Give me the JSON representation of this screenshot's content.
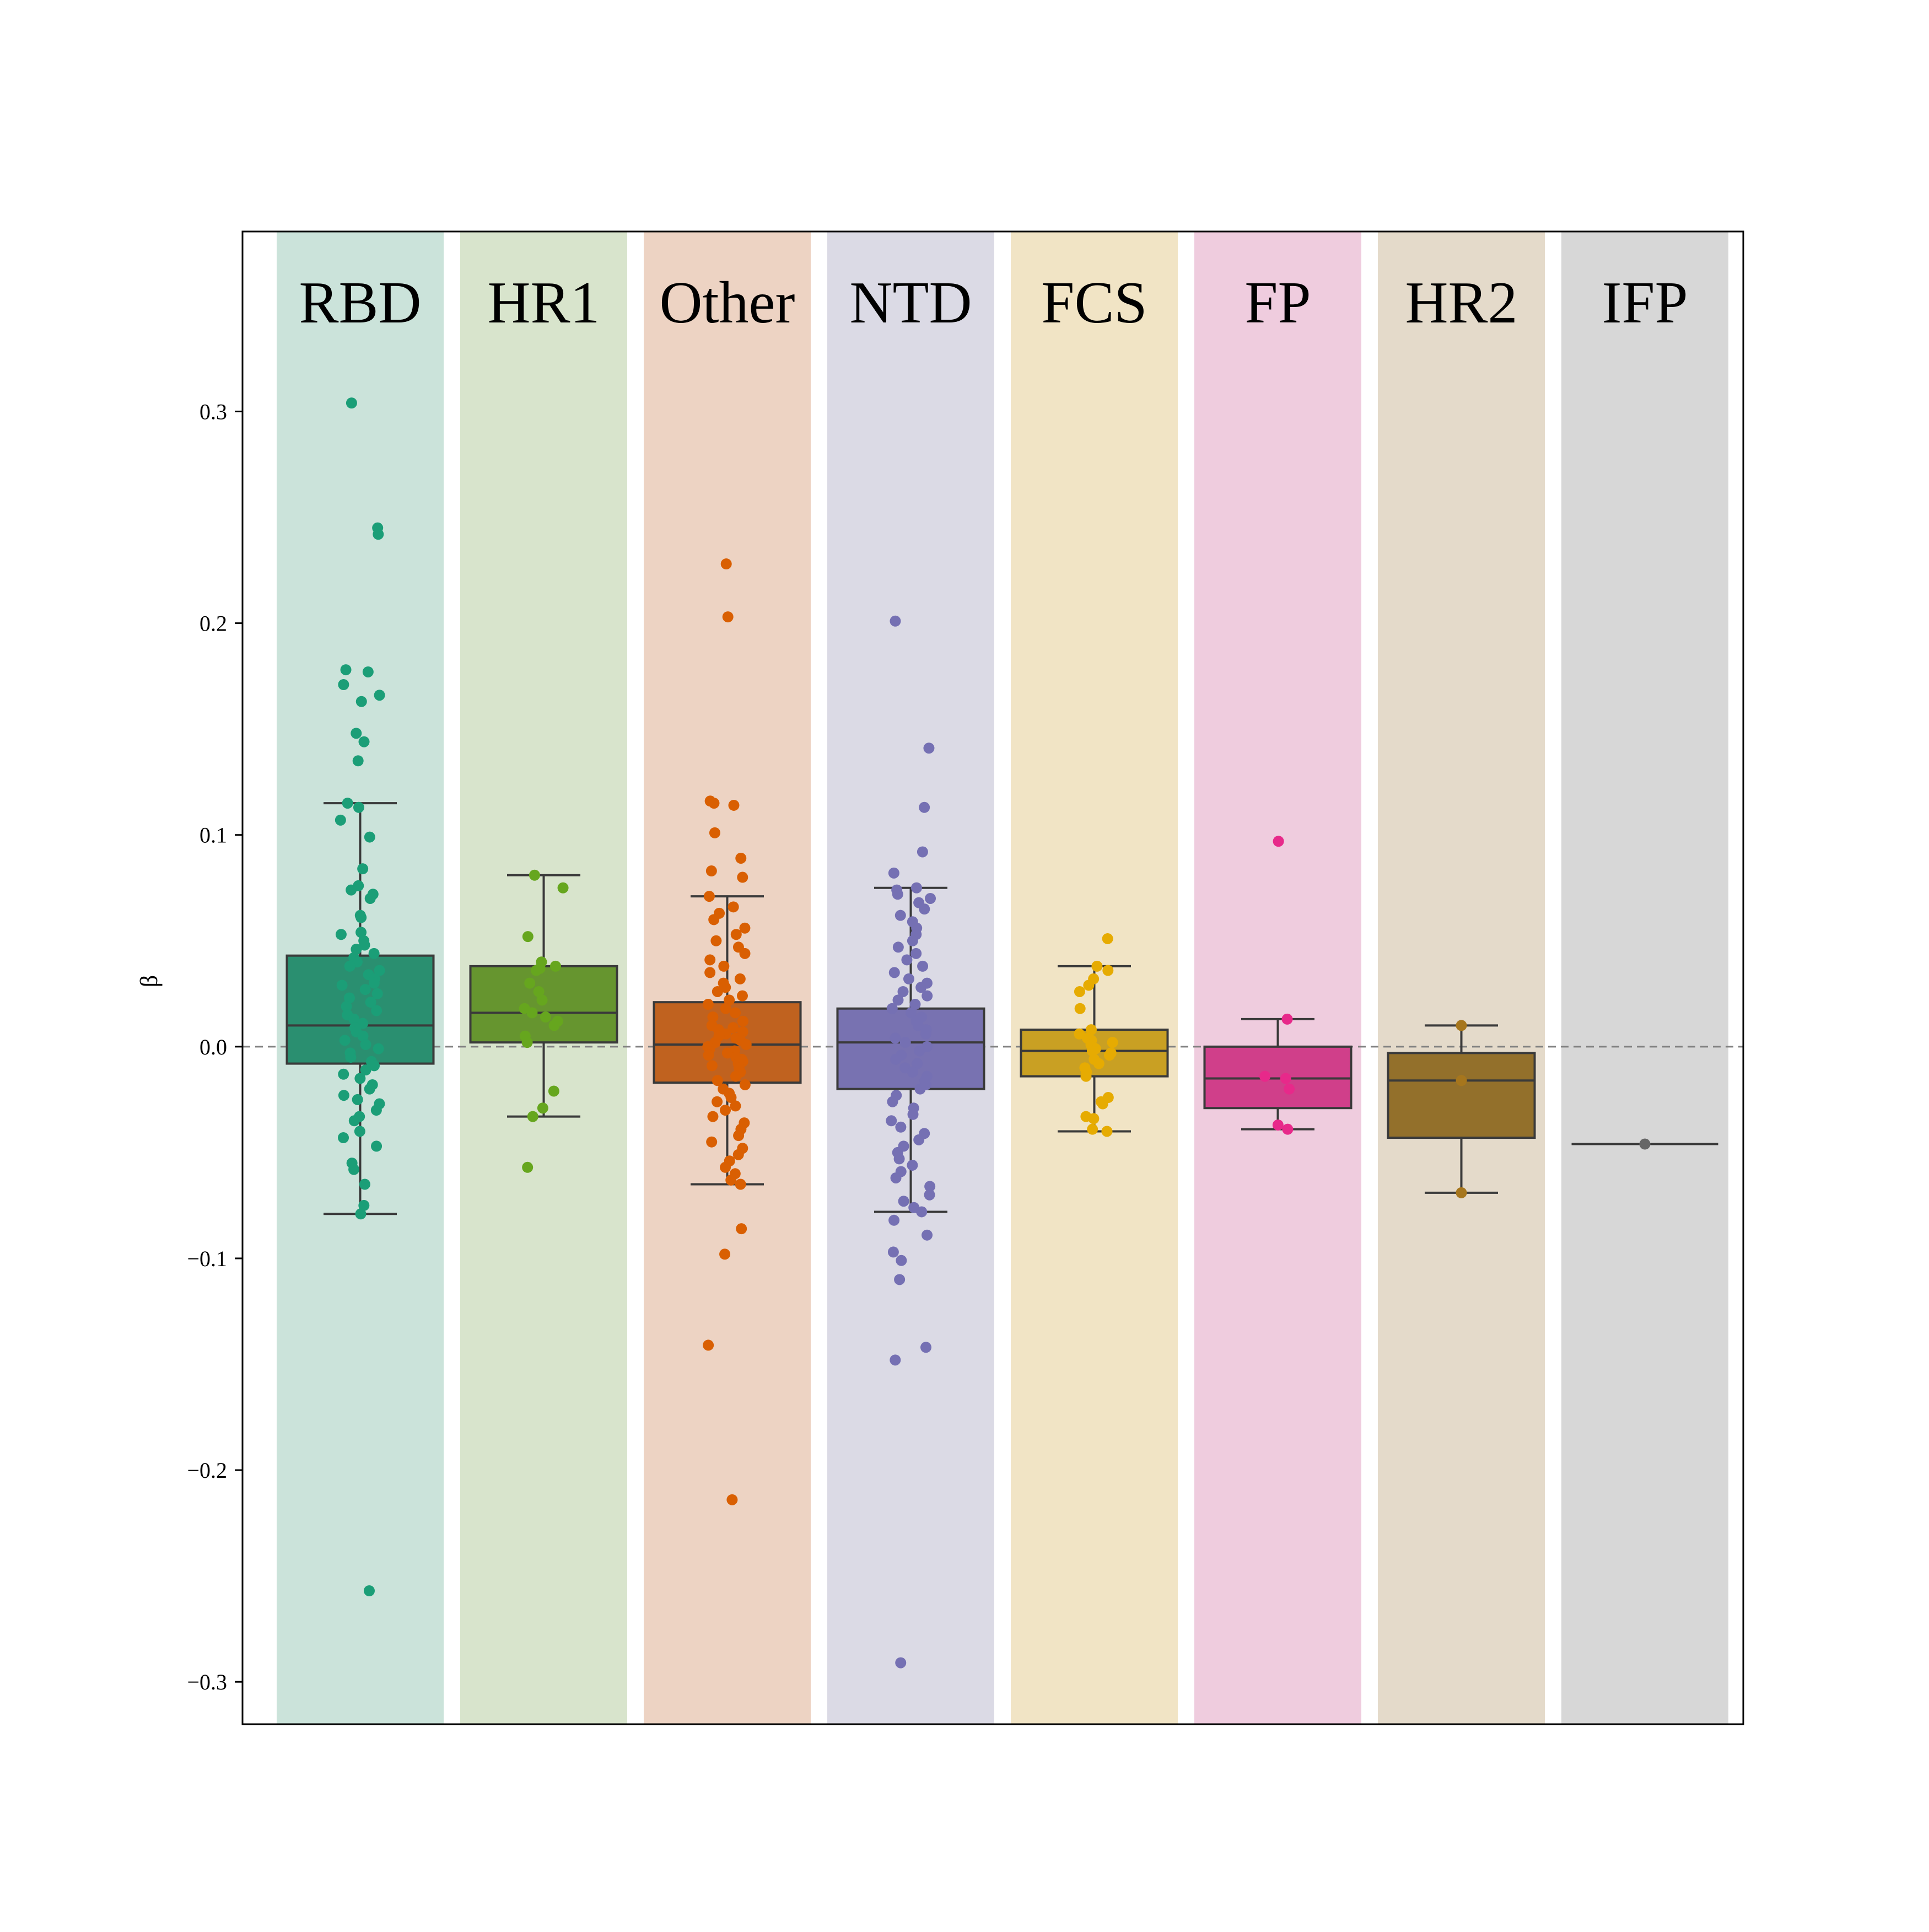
{
  "chart_data": {
    "type": "box",
    "title": "",
    "xlabel": "",
    "ylabel": "β",
    "ylim": [
      -0.32,
      0.385
    ],
    "yticks": [
      -0.3,
      -0.2,
      -0.1,
      0.0,
      0.1,
      0.2,
      0.3
    ],
    "ytick_labels": [
      "−0.3",
      "−0.2",
      "−0.1",
      "0.0",
      "0.1",
      "0.2",
      "0.3"
    ],
    "reference_line": {
      "y": 0.0,
      "style": "dashed",
      "color": "#808080"
    },
    "grid": false,
    "legend": "none",
    "categories": [
      "RBD",
      "HR1",
      "Other",
      "NTD",
      "FCS",
      "FP",
      "HR2",
      "IFP"
    ],
    "band_colors": [
      "#d3ece3",
      "#e1edd5",
      "#f7dccb",
      "#e4e3ef",
      "#fbeecd",
      "#f9d4e7",
      "#ede3d2",
      "#e0e0e0"
    ],
    "series": [
      {
        "name": "RBD",
        "color": "#1b9e77",
        "box_color": "#2a8f70",
        "box": {
          "whisker_low": -0.079,
          "q1": -0.008,
          "median": 0.01,
          "q3": 0.043,
          "whisker_high": 0.115
        },
        "outliers": [
          0.304,
          0.245,
          0.242,
          0.178,
          0.177,
          0.171,
          0.166,
          0.163,
          0.148,
          0.144,
          0.135,
          0.113,
          0.107,
          -0.257
        ],
        "points": [
          0.115,
          0.099,
          0.084,
          0.076,
          0.074,
          0.072,
          0.07,
          0.062,
          0.061,
          0.054,
          0.053,
          0.05,
          0.048,
          0.046,
          0.044,
          0.042,
          0.04,
          0.038,
          0.036,
          0.034,
          0.032,
          0.03,
          0.029,
          0.027,
          0.025,
          0.023,
          0.021,
          0.019,
          0.017,
          0.015,
          0.013,
          0.011,
          0.009,
          0.007,
          0.005,
          0.003,
          0.001,
          -0.001,
          -0.003,
          -0.005,
          -0.007,
          -0.009,
          -0.011,
          -0.013,
          -0.015,
          -0.018,
          -0.02,
          -0.023,
          -0.025,
          -0.027,
          -0.03,
          -0.033,
          -0.035,
          -0.04,
          -0.043,
          -0.047,
          -0.055,
          -0.058,
          -0.065,
          -0.075,
          -0.079
        ]
      },
      {
        "name": "HR1",
        "color": "#66a61e",
        "box_color": "#66952f",
        "box": {
          "whisker_low": -0.033,
          "q1": 0.002,
          "median": 0.016,
          "q3": 0.038,
          "whisker_high": 0.081
        },
        "outliers": [
          -0.057
        ],
        "points": [
          0.081,
          0.075,
          0.052,
          0.04,
          0.038,
          0.037,
          0.036,
          0.03,
          0.026,
          0.022,
          0.018,
          0.016,
          0.014,
          0.012,
          0.01,
          0.005,
          0.002,
          -0.021,
          -0.029,
          -0.033
        ]
      },
      {
        "name": "Other",
        "color": "#d95f02",
        "box_color": "#c0621f",
        "box": {
          "whisker_low": -0.065,
          "q1": -0.017,
          "median": 0.001,
          "q3": 0.021,
          "whisker_high": 0.071
        },
        "outliers": [
          0.228,
          0.203,
          0.116,
          0.115,
          0.114,
          0.101,
          0.089,
          0.083,
          0.08,
          -0.086,
          -0.098,
          -0.141,
          -0.214
        ],
        "points": [
          0.071,
          0.066,
          0.063,
          0.06,
          0.056,
          0.053,
          0.05,
          0.047,
          0.044,
          0.041,
          0.038,
          0.035,
          0.032,
          0.03,
          0.028,
          0.026,
          0.024,
          0.022,
          0.02,
          0.018,
          0.016,
          0.014,
          0.012,
          0.01,
          0.009,
          0.008,
          0.007,
          0.006,
          0.005,
          0.004,
          0.003,
          0.002,
          0.001,
          0.0,
          -0.001,
          -0.002,
          -0.003,
          -0.004,
          -0.005,
          -0.006,
          -0.007,
          -0.008,
          -0.009,
          -0.01,
          -0.012,
          -0.014,
          -0.016,
          -0.018,
          -0.02,
          -0.022,
          -0.024,
          -0.026,
          -0.028,
          -0.03,
          -0.033,
          -0.036,
          -0.039,
          -0.042,
          -0.045,
          -0.048,
          -0.051,
          -0.054,
          -0.057,
          -0.06,
          -0.063,
          -0.065
        ]
      },
      {
        "name": "NTD",
        "color": "#7570b3",
        "box_color": "#7872b1",
        "box": {
          "whisker_low": -0.078,
          "q1": -0.02,
          "median": 0.002,
          "q3": 0.018,
          "whisker_high": 0.075
        },
        "outliers": [
          0.201,
          0.141,
          0.113,
          0.092,
          0.082,
          -0.082,
          -0.089,
          -0.097,
          -0.101,
          -0.11,
          -0.142,
          -0.148,
          -0.291
        ],
        "points": [
          0.075,
          0.074,
          0.072,
          0.07,
          0.068,
          0.065,
          0.062,
          0.059,
          0.056,
          0.053,
          0.05,
          0.047,
          0.044,
          0.041,
          0.038,
          0.035,
          0.032,
          0.03,
          0.028,
          0.026,
          0.024,
          0.022,
          0.02,
          0.018,
          0.016,
          0.014,
          0.012,
          0.01,
          0.008,
          0.006,
          0.004,
          0.002,
          0.0,
          -0.002,
          -0.004,
          -0.006,
          -0.008,
          -0.01,
          -0.012,
          -0.014,
          -0.016,
          -0.018,
          -0.02,
          -0.023,
          -0.026,
          -0.029,
          -0.032,
          -0.035,
          -0.038,
          -0.041,
          -0.044,
          -0.047,
          -0.05,
          -0.053,
          -0.056,
          -0.059,
          -0.062,
          -0.066,
          -0.07,
          -0.073,
          -0.076,
          -0.078
        ]
      },
      {
        "name": "FCS",
        "color": "#e6ab02",
        "box_color": "#c9a023",
        "box": {
          "whisker_low": -0.04,
          "q1": -0.014,
          "median": -0.002,
          "q3": 0.008,
          "whisker_high": 0.038
        },
        "outliers": [
          0.051
        ],
        "points": [
          0.038,
          0.036,
          0.032,
          0.029,
          0.026,
          0.018,
          0.008,
          0.006,
          0.004,
          0.003,
          0.002,
          0.001,
          0.0,
          -0.001,
          -0.002,
          -0.003,
          -0.004,
          -0.006,
          -0.008,
          -0.01,
          -0.012,
          -0.014,
          -0.024,
          -0.026,
          -0.027,
          -0.033,
          -0.034,
          -0.039,
          -0.04
        ]
      },
      {
        "name": "FP",
        "color": "#e7298a",
        "box_color": "#d03f8a",
        "box": {
          "whisker_low": -0.039,
          "q1": -0.029,
          "median": -0.015,
          "q3": 0.0,
          "whisker_high": 0.013
        },
        "outliers": [
          0.097
        ],
        "points": [
          0.013,
          -0.014,
          -0.015,
          -0.02,
          -0.037,
          -0.039
        ]
      },
      {
        "name": "HR2",
        "color": "#a6761d",
        "box_color": "#93702b",
        "box": {
          "whisker_low": -0.069,
          "q1": -0.043,
          "median": -0.016,
          "q3": -0.003,
          "whisker_high": 0.01
        },
        "outliers": [],
        "points": [
          0.01,
          -0.016,
          -0.069
        ]
      },
      {
        "name": "IFP",
        "color": "#666666",
        "box_color": "#666666",
        "box": {
          "whisker_low": -0.046,
          "q1": -0.046,
          "median": -0.046,
          "q3": -0.046,
          "whisker_high": -0.046
        },
        "outliers": [],
        "points": [
          -0.046
        ]
      }
    ]
  }
}
